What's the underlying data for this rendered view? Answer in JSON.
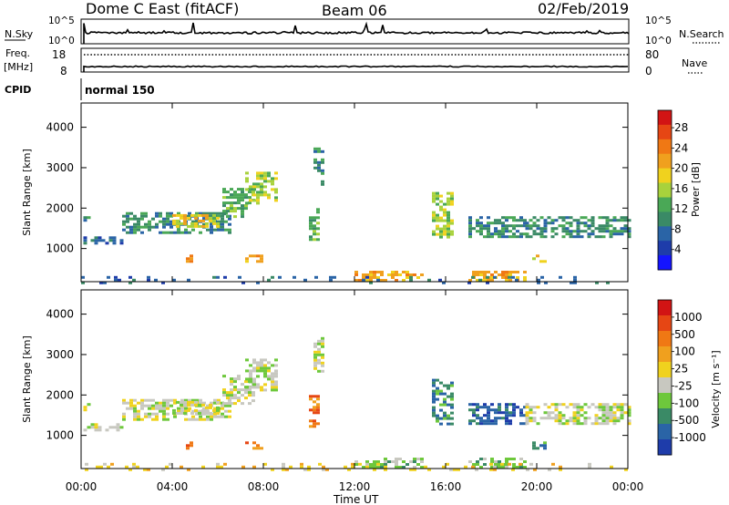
{
  "header": {
    "title": "Dome C East (fitACF)",
    "beam": "Beam 06",
    "date": "02/Feb/2019"
  },
  "summary_panels": {
    "nsky": {
      "label": "N.Sky",
      "ticks": [
        "10^5",
        "10^0"
      ]
    },
    "nsearch": {
      "label": "N.Search",
      "ticks": [
        "10^5",
        "10^0"
      ]
    },
    "freq": {
      "label_line1": "Freq.",
      "label_line2": "[MHz]",
      "ticks": [
        "18",
        "8"
      ]
    },
    "nave": {
      "label": "Nave",
      "ticks": [
        "80",
        "0"
      ]
    },
    "cpid": {
      "label": "CPID",
      "mode": "normal 150"
    }
  },
  "chart_data": [
    {
      "type": "heatmap",
      "title": "",
      "xlabel": "Time UT",
      "ylabel": "Slant Range [km]",
      "x_ticks": [
        "00:00",
        "04:00",
        "08:00",
        "12:00",
        "16:00",
        "20:00",
        "00:00"
      ],
      "x_range_hours": [
        0,
        24
      ],
      "y_ticks": [
        "1000",
        "2000",
        "3000",
        "4000"
      ],
      "ylim": [
        180,
        4600
      ],
      "colorbar": {
        "label": "Power [dB]",
        "ticks": [
          "4",
          "8",
          "12",
          "16",
          "20",
          "24",
          "28"
        ],
        "colors": [
          "#1414ff",
          "#1e3caa",
          "#2a64a6",
          "#3a8a66",
          "#4aa856",
          "#a8d23c",
          "#f0d21e",
          "#f0a01e",
          "#f07814",
          "#e64614",
          "#d21414"
        ]
      },
      "grid": false,
      "echo_regions": [
        {
          "t0": 0.1,
          "t1": 1.8,
          "r0": 1150,
          "r1": 1300,
          "level": 2
        },
        {
          "t0": 0.1,
          "t1": 0.4,
          "r0": 1600,
          "r1": 1800,
          "level": 3
        },
        {
          "t0": 1.8,
          "t1": 6.5,
          "r0": 1400,
          "r1": 1900,
          "level": 3
        },
        {
          "t0": 4.0,
          "t1": 6.0,
          "r0": 1550,
          "r1": 1850,
          "level": 6
        },
        {
          "t0": 6.2,
          "t1": 7.5,
          "r0": 1800,
          "r1": 2500,
          "level": 4
        },
        {
          "t0": 7.2,
          "t1": 8.6,
          "r0": 2100,
          "r1": 2900,
          "level": 5
        },
        {
          "t0": 7.2,
          "t1": 7.9,
          "r0": 700,
          "r1": 850,
          "level": 7
        },
        {
          "t0": 4.6,
          "t1": 4.9,
          "r0": 700,
          "r1": 850,
          "level": 8
        },
        {
          "t0": 10.2,
          "t1": 10.6,
          "r0": 2600,
          "r1": 3500,
          "level": 3
        },
        {
          "t0": 10.0,
          "t1": 10.4,
          "r0": 1200,
          "r1": 2000,
          "level": 4
        },
        {
          "t0": 12.0,
          "t1": 15.0,
          "r0": 200,
          "r1": 450,
          "level": 7
        },
        {
          "t0": 15.4,
          "t1": 16.3,
          "r0": 1300,
          "r1": 2400,
          "level": 5
        },
        {
          "t0": 17.0,
          "t1": 19.5,
          "r0": 200,
          "r1": 450,
          "level": 7
        },
        {
          "t0": 17.0,
          "t1": 19.5,
          "r0": 1300,
          "r1": 1800,
          "level": 3
        },
        {
          "t0": 19.5,
          "t1": 24.0,
          "r0": 1300,
          "r1": 1800,
          "level": 3
        },
        {
          "t0": 19.8,
          "t1": 20.4,
          "r0": 700,
          "r1": 850,
          "level": 6
        },
        {
          "t0": 0.0,
          "t1": 24.0,
          "r0": 180,
          "r1": 320,
          "level": 2
        }
      ]
    },
    {
      "type": "heatmap",
      "title": "",
      "xlabel": "Time UT",
      "ylabel": "Slant Range [km]",
      "x_ticks": [
        "00:00",
        "04:00",
        "08:00",
        "12:00",
        "16:00",
        "20:00",
        "00:00"
      ],
      "x_range_hours": [
        0,
        24
      ],
      "y_ticks": [
        "1000",
        "2000",
        "3000",
        "4000"
      ],
      "ylim": [
        180,
        4600
      ],
      "colorbar": {
        "label": "Velocity [m s⁻¹]",
        "ticks": [
          "1000",
          "500",
          "100",
          "25",
          "-25",
          "-100",
          "-500",
          "-1000"
        ],
        "colors": [
          "#1e3caa",
          "#2a64a6",
          "#3a8a66",
          "#6ec83c",
          "#c8c8c0",
          "#f0d21e",
          "#f0a01e",
          "#f07814",
          "#e64614",
          "#d21414"
        ]
      },
      "grid": false,
      "echo_regions": [
        {
          "t0": 0.1,
          "t1": 1.8,
          "r0": 1150,
          "r1": 1300,
          "level": 4
        },
        {
          "t0": 0.1,
          "t1": 0.4,
          "r0": 1600,
          "r1": 1800,
          "level": 4
        },
        {
          "t0": 1.8,
          "t1": 6.5,
          "r0": 1400,
          "r1": 1900,
          "level": 4
        },
        {
          "t0": 4.0,
          "t1": 6.0,
          "r0": 1550,
          "r1": 1850,
          "level": 4
        },
        {
          "t0": 6.2,
          "t1": 7.5,
          "r0": 1800,
          "r1": 2500,
          "level": 4
        },
        {
          "t0": 7.2,
          "t1": 8.6,
          "r0": 2100,
          "r1": 2900,
          "level": 4
        },
        {
          "t0": 7.2,
          "t1": 7.9,
          "r0": 700,
          "r1": 850,
          "level": 7
        },
        {
          "t0": 4.6,
          "t1": 4.9,
          "r0": 700,
          "r1": 850,
          "level": 7
        },
        {
          "t0": 10.2,
          "t1": 10.6,
          "r0": 2600,
          "r1": 3500,
          "level": 4
        },
        {
          "t0": 10.0,
          "t1": 10.4,
          "r0": 1200,
          "r1": 2000,
          "level": 7
        },
        {
          "t0": 12.0,
          "t1": 15.0,
          "r0": 200,
          "r1": 450,
          "level": 3
        },
        {
          "t0": 15.4,
          "t1": 16.3,
          "r0": 1300,
          "r1": 2400,
          "level": 2
        },
        {
          "t0": 17.0,
          "t1": 19.5,
          "r0": 200,
          "r1": 450,
          "level": 3
        },
        {
          "t0": 17.0,
          "t1": 19.5,
          "r0": 1300,
          "r1": 1800,
          "level": 1
        },
        {
          "t0": 19.5,
          "t1": 24.0,
          "r0": 1300,
          "r1": 1800,
          "level": 4
        },
        {
          "t0": 19.8,
          "t1": 20.4,
          "r0": 700,
          "r1": 850,
          "level": 2
        },
        {
          "t0": 0.0,
          "t1": 24.0,
          "r0": 180,
          "r1": 320,
          "level": 5
        }
      ]
    }
  ]
}
